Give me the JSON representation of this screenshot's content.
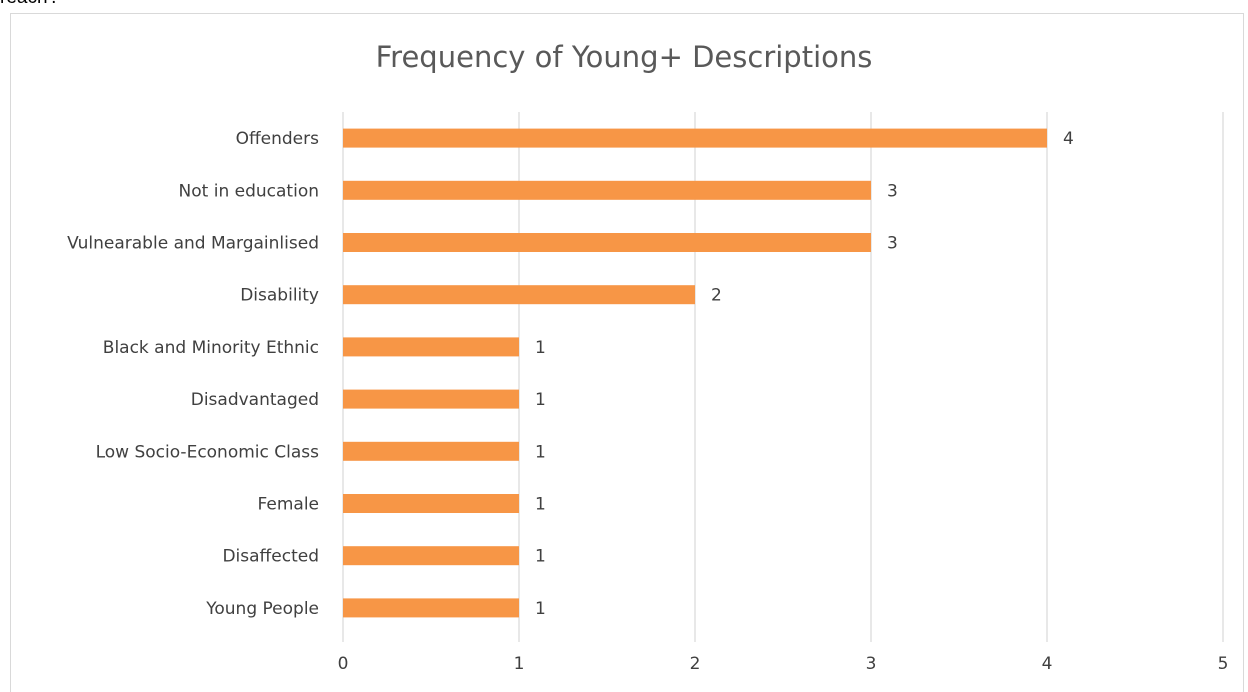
{
  "document": {
    "partial_text": "reach'."
  },
  "chart_data": {
    "type": "bar",
    "orientation": "horizontal",
    "title": "Frequency of Young+ Descriptions",
    "xlabel": "",
    "ylabel": "",
    "categories": [
      "Offenders",
      "Not in education",
      "Vulnearable and Margainlised",
      "Disability",
      "Black and Minority Ethnic",
      "Disadvantaged",
      "Low Socio-Economic Class",
      "Female",
      "Disaffected",
      "Young People"
    ],
    "values": [
      4,
      3,
      3,
      2,
      1,
      1,
      1,
      1,
      1,
      1
    ],
    "xlim": [
      0,
      5
    ],
    "x_ticks": [
      0,
      1,
      2,
      3,
      4,
      5
    ],
    "data_labels": true,
    "grid": "vertical",
    "legend": "none",
    "bar_color": "#f79646",
    "grid_color": "#d9d9d9"
  }
}
